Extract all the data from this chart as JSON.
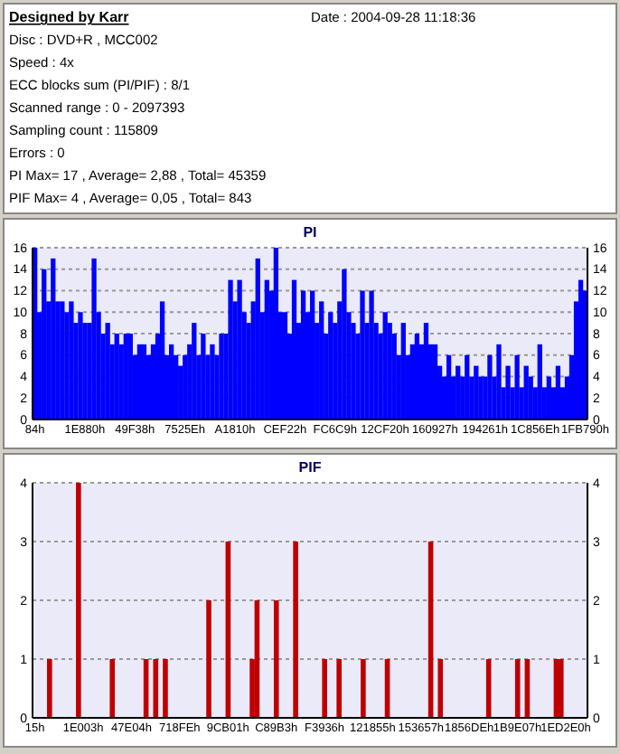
{
  "chart_data": [
    {
      "type": "other",
      "title": "Designed by Karr",
      "annotations": [
        "Date : 2004-09-28 11:18:36",
        "Disc : DVD+R , MCC002",
        "Speed : 4x",
        "ECC blocks sum (PI/PIF) : 8/1",
        "Scanned range : 0 - 2097393",
        "Sampling count : 115809",
        "Errors : 0",
        "PI Max= 17 , Average= 2,88 , Total= 45359",
        "PIF Max= 4 , Average= 0,05 , Total= 843"
      ]
    },
    {
      "type": "bar",
      "title": "PI",
      "categories": [
        "84h",
        null,
        null,
        null,
        null,
        null,
        null,
        null,
        null,
        null,
        null,
        "1E880h",
        null,
        null,
        null,
        null,
        null,
        null,
        null,
        null,
        null,
        null,
        "49F38h",
        null,
        null,
        null,
        null,
        null,
        null,
        null,
        null,
        null,
        null,
        "7525Eh",
        null,
        null,
        null,
        null,
        null,
        null,
        null,
        null,
        null,
        null,
        "A1810h",
        null,
        null,
        null,
        null,
        null,
        null,
        null,
        null,
        null,
        null,
        "CEF22h",
        null,
        null,
        null,
        null,
        null,
        null,
        null,
        null,
        null,
        null,
        "FC6C9h",
        null,
        null,
        null,
        null,
        null,
        null,
        null,
        null,
        null,
        null,
        "12CF20h",
        null,
        null,
        null,
        null,
        null,
        null,
        null,
        null,
        null,
        null,
        "160927h",
        null,
        null,
        null,
        null,
        null,
        null,
        null,
        null,
        null,
        null,
        "194261h",
        null,
        null,
        null,
        null,
        null,
        null,
        null,
        null,
        null,
        null,
        "1C856Eh",
        null,
        null,
        null,
        null,
        null,
        null,
        null,
        null,
        null,
        null,
        "1FB790h"
      ],
      "color": "#0000ff",
      "ylim": [
        0,
        16
      ],
      "yticks": [
        0,
        2,
        4,
        6,
        8,
        10,
        12,
        14,
        16
      ],
      "y2lim": [
        0,
        16
      ],
      "y2ticks": [
        0,
        2,
        4,
        6,
        8,
        10,
        12,
        14,
        16
      ],
      "grid": "y",
      "values": [
        16,
        10,
        14,
        11,
        15,
        11,
        11,
        10,
        11,
        9,
        10,
        9,
        9,
        15,
        10,
        8,
        9,
        7,
        8,
        7,
        8,
        8,
        6,
        7,
        7,
        6,
        7,
        8,
        11,
        6,
        7,
        6,
        5,
        6,
        7,
        9,
        6,
        8,
        6,
        7,
        6,
        8,
        8,
        13,
        11,
        13,
        10,
        9,
        11,
        15,
        10,
        13,
        12,
        16,
        10,
        10,
        8,
        13,
        9,
        12,
        10,
        12,
        9,
        11,
        8,
        10,
        9,
        11,
        14,
        10,
        9,
        8,
        12,
        9,
        12,
        9,
        8,
        10,
        9,
        8,
        6,
        9,
        6,
        7,
        8,
        7,
        9,
        7,
        7,
        5,
        4,
        6,
        4,
        5,
        4,
        6,
        4,
        5,
        4,
        4,
        6,
        4,
        7,
        3,
        5,
        3,
        6,
        3,
        5,
        4,
        3,
        7,
        3,
        4,
        3,
        5,
        3,
        4,
        6,
        11,
        13,
        12
      ]
    },
    {
      "type": "bar",
      "title": "PIF",
      "categories": [
        "15h",
        null,
        null,
        null,
        null,
        null,
        null,
        null,
        null,
        null,
        "1E003h",
        null,
        null,
        null,
        null,
        null,
        null,
        null,
        null,
        null,
        "47E04h",
        null,
        null,
        null,
        null,
        null,
        null,
        null,
        null,
        null,
        "718FEh",
        null,
        null,
        null,
        null,
        null,
        null,
        null,
        null,
        null,
        "9CB01h",
        null,
        null,
        null,
        null,
        null,
        null,
        null,
        null,
        null,
        "C89B3h",
        null,
        null,
        null,
        null,
        null,
        null,
        null,
        null,
        null,
        "F3936h",
        null,
        null,
        null,
        null,
        null,
        null,
        null,
        null,
        null,
        "121855h",
        null,
        null,
        null,
        null,
        null,
        null,
        null,
        null,
        null,
        "153657h",
        null,
        null,
        null,
        null,
        null,
        null,
        null,
        null,
        null,
        "1856DEh",
        null,
        null,
        null,
        null,
        null,
        null,
        null,
        null,
        null,
        "1B9E07h",
        null,
        null,
        null,
        null,
        null,
        null,
        null,
        null,
        null,
        "1ED2E0h",
        null,
        null,
        null,
        null
      ],
      "color": "#c00000",
      "ylim": [
        0,
        4
      ],
      "yticks": [
        0,
        1,
        2,
        3,
        4
      ],
      "y2lim": [
        0,
        4
      ],
      "y2ticks": [
        0,
        1,
        2,
        3,
        4
      ],
      "grid": "y",
      "values": [
        0,
        0,
        0,
        1,
        0,
        0,
        0,
        0,
        0,
        4,
        0,
        0,
        0,
        0,
        0,
        0,
        1,
        0,
        0,
        0,
        0,
        0,
        0,
        1,
        0,
        1,
        0,
        1,
        0,
        0,
        0,
        0,
        0,
        0,
        0,
        0,
        2,
        0,
        0,
        0,
        3,
        0,
        0,
        0,
        0,
        1,
        2,
        0,
        0,
        0,
        2,
        0,
        0,
        0,
        3,
        0,
        0,
        0,
        0,
        0,
        1,
        0,
        0,
        1,
        0,
        0,
        0,
        0,
        1,
        0,
        0,
        0,
        0,
        1,
        0,
        0,
        0,
        0,
        0,
        0,
        0,
        0,
        3,
        0,
        1,
        0,
        0,
        0,
        0,
        0,
        0,
        0,
        0,
        0,
        1,
        0,
        0,
        0,
        0,
        0,
        1,
        0,
        1,
        0,
        0,
        0,
        0,
        0,
        1,
        1,
        0,
        0,
        0,
        0,
        0
      ]
    }
  ]
}
